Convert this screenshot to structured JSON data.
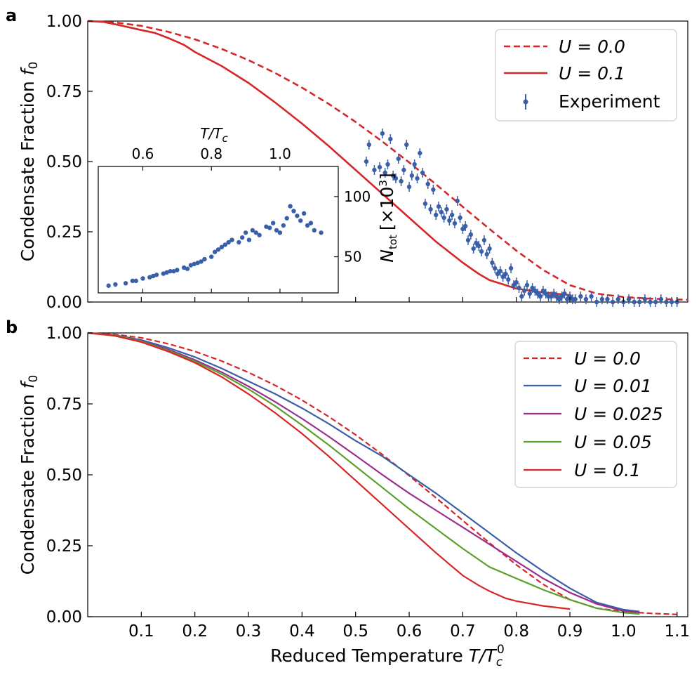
{
  "chart_data": [
    {
      "panel": "a",
      "type": "line",
      "ylabel": "Condensate Fraction",
      "ylabel_symbol": "f",
      "ylabel_sub": "0",
      "xlim": [
        0.0,
        1.12
      ],
      "ylim": [
        0.0,
        1.0
      ],
      "yticks": [
        "0.00",
        "0.25",
        "0.50",
        "0.75",
        "1.00"
      ],
      "legend_position": "top-right",
      "legend": [
        {
          "label": "U = 0.0",
          "style": "dashed",
          "color": "#d62728"
        },
        {
          "label": "U = 0.1",
          "style": "solid",
          "color": "#d62728"
        },
        {
          "label": "Experiment",
          "style": "errorbar-marker",
          "color": "#3a5ea8"
        }
      ],
      "series": [
        {
          "name": "U = 0.0",
          "style": "dashed",
          "color": "#d62728",
          "x": [
            0.0,
            0.05,
            0.1,
            0.15,
            0.2,
            0.25,
            0.3,
            0.35,
            0.4,
            0.45,
            0.5,
            0.55,
            0.6,
            0.65,
            0.7,
            0.75,
            0.8,
            0.85,
            0.9,
            0.95,
            1.0,
            1.05,
            1.1,
            1.12
          ],
          "y": [
            1.0,
            0.995,
            0.983,
            0.962,
            0.935,
            0.901,
            0.861,
            0.815,
            0.763,
            0.705,
            0.641,
            0.571,
            0.497,
            0.419,
            0.339,
            0.26,
            0.183,
            0.114,
            0.06,
            0.03,
            0.018,
            0.012,
            0.009,
            0.008
          ]
        },
        {
          "name": "U = 0.1",
          "style": "solid",
          "color": "#d62728",
          "x": [
            0.0,
            0.03,
            0.06,
            0.1,
            0.125,
            0.15,
            0.18,
            0.2,
            0.25,
            0.3,
            0.35,
            0.4,
            0.45,
            0.5,
            0.55,
            0.6,
            0.65,
            0.7,
            0.73,
            0.75,
            0.78,
            0.8,
            0.85,
            0.9
          ],
          "y": [
            1.0,
            0.997,
            0.985,
            0.968,
            0.958,
            0.94,
            0.915,
            0.89,
            0.84,
            0.78,
            0.71,
            0.635,
            0.555,
            0.47,
            0.385,
            0.3,
            0.215,
            0.14,
            0.1,
            0.078,
            0.06,
            0.048,
            0.034,
            0.025
          ]
        },
        {
          "name": "Experiment",
          "type": "scatter",
          "color": "#3a5ea8",
          "x": [
            0.52,
            0.525,
            0.535,
            0.545,
            0.55,
            0.555,
            0.56,
            0.565,
            0.57,
            0.575,
            0.58,
            0.585,
            0.59,
            0.595,
            0.6,
            0.605,
            0.61,
            0.615,
            0.62,
            0.625,
            0.63,
            0.635,
            0.64,
            0.645,
            0.65,
            0.655,
            0.66,
            0.665,
            0.67,
            0.675,
            0.68,
            0.685,
            0.69,
            0.695,
            0.7,
            0.705,
            0.71,
            0.715,
            0.72,
            0.725,
            0.73,
            0.735,
            0.74,
            0.745,
            0.75,
            0.755,
            0.76,
            0.765,
            0.77,
            0.775,
            0.78,
            0.785,
            0.79,
            0.795,
            0.8,
            0.805,
            0.81,
            0.815,
            0.82,
            0.825,
            0.83,
            0.835,
            0.84,
            0.845,
            0.85,
            0.855,
            0.86,
            0.865,
            0.87,
            0.875,
            0.88,
            0.885,
            0.89,
            0.895,
            0.9,
            0.905,
            0.91,
            0.92,
            0.93,
            0.94,
            0.95,
            0.96,
            0.97,
            0.98,
            0.99,
            1.0,
            1.01,
            1.02,
            1.03,
            1.04,
            1.05,
            1.06,
            1.07,
            1.08,
            1.09,
            1.1
          ],
          "y": [
            0.5,
            0.56,
            0.47,
            0.48,
            0.6,
            0.46,
            0.49,
            0.58,
            0.45,
            0.44,
            0.51,
            0.43,
            0.47,
            0.56,
            0.41,
            0.45,
            0.49,
            0.44,
            0.53,
            0.46,
            0.35,
            0.42,
            0.33,
            0.4,
            0.31,
            0.34,
            0.32,
            0.3,
            0.33,
            0.29,
            0.31,
            0.28,
            0.36,
            0.3,
            0.26,
            0.27,
            0.22,
            0.24,
            0.19,
            0.21,
            0.2,
            0.18,
            0.22,
            0.17,
            0.19,
            0.14,
            0.12,
            0.1,
            0.11,
            0.09,
            0.1,
            0.08,
            0.12,
            0.06,
            0.07,
            0.05,
            0.02,
            0.04,
            0.06,
            0.03,
            0.05,
            0.04,
            0.03,
            0.02,
            0.04,
            0.03,
            0.02,
            0.02,
            0.03,
            0.02,
            0.01,
            0.02,
            0.03,
            0.01,
            0.02,
            0.01,
            0.01,
            0.02,
            0.01,
            0.02,
            0.0,
            0.01,
            0.01,
            0.0,
            0.01,
            0.0,
            0.01,
            0.0,
            0.0,
            0.01,
            0.0,
            0.0,
            0.01,
            0.0,
            0.0,
            0.0
          ]
        }
      ],
      "inset": {
        "type": "scatter",
        "xlabel": "T/T",
        "xlabel_sub": "c",
        "ylabel_symbol": "N",
        "ylabel_sub": "tot",
        "ylabel_unit": "[×10",
        "ylabel_exp": "3",
        "ylabel_close": "]",
        "xlim": [
          0.47,
          1.17
        ],
        "ylim": [
          20,
          125
        ],
        "xticks": [
          0.6,
          0.8,
          1.0
        ],
        "xtick_labels": [
          "0.6",
          "0.8",
          "1.0"
        ],
        "yticks": [
          50,
          100
        ],
        "ytick_labels": [
          "50",
          "100"
        ],
        "color": "#3a5ea8",
        "x": [
          0.5,
          0.52,
          0.55,
          0.57,
          0.6,
          0.62,
          0.64,
          0.66,
          0.68,
          0.7,
          0.72,
          0.74,
          0.76,
          0.78,
          0.8,
          0.82,
          0.84,
          0.86,
          0.88,
          0.9,
          0.92,
          0.94,
          0.96,
          0.98,
          1.0,
          1.02,
          1.04,
          1.06,
          1.08,
          1.1,
          1.12,
          0.58,
          0.63,
          0.69,
          0.73,
          0.77,
          0.81,
          0.85,
          0.89,
          0.93,
          0.97,
          1.01,
          1.05,
          1.09,
          0.67,
          0.75,
          0.83,
          0.91,
          0.99,
          1.03,
          1.07
        ],
        "y": [
          26,
          27,
          28,
          30,
          32,
          33,
          35,
          36,
          38,
          39,
          41,
          43,
          45,
          48,
          50,
          56,
          60,
          64,
          62,
          70,
          72,
          68,
          75,
          78,
          70,
          82,
          88,
          80,
          76,
          72,
          70,
          30,
          34,
          38,
          40,
          46,
          54,
          62,
          66,
          70,
          74,
          76,
          84,
          78,
          37,
          44,
          58,
          64,
          72,
          92,
          86
        ]
      }
    },
    {
      "panel": "b",
      "type": "line",
      "xlabel": "Reduced Temperature",
      "xlabel_symbol": "T/T",
      "xlabel_sub": "c",
      "xlabel_sup": "0",
      "ylabel": "Condensate Fraction",
      "ylabel_symbol": "f",
      "ylabel_sub": "0",
      "xlim": [
        0.0,
        1.12
      ],
      "ylim": [
        0.0,
        1.0
      ],
      "xticks": [
        "0.1",
        "0.2",
        "0.3",
        "0.4",
        "0.5",
        "0.6",
        "0.7",
        "0.8",
        "0.9",
        "1.0",
        "1.1"
      ],
      "yticks": [
        "0.00",
        "0.25",
        "0.50",
        "0.75",
        "1.00"
      ],
      "legend_position": "top-right",
      "legend": [
        {
          "label": "U = 0.0",
          "style": "dashed",
          "color": "#d62728"
        },
        {
          "label": "U = 0.01",
          "style": "solid",
          "color": "#3a5ea8"
        },
        {
          "label": "U = 0.025",
          "style": "solid",
          "color": "#9b2d8f"
        },
        {
          "label": "U = 0.05",
          "style": "solid",
          "color": "#5aa02c"
        },
        {
          "label": "U = 0.1",
          "style": "solid",
          "color": "#d62728"
        }
      ],
      "series": [
        {
          "name": "U = 0.0",
          "style": "dashed",
          "color": "#d62728",
          "x": [
            0.0,
            0.05,
            0.1,
            0.15,
            0.2,
            0.25,
            0.3,
            0.35,
            0.4,
            0.45,
            0.5,
            0.55,
            0.6,
            0.65,
            0.7,
            0.75,
            0.8,
            0.85,
            0.9,
            0.95,
            1.0,
            1.05,
            1.1
          ],
          "y": [
            1.0,
            0.995,
            0.983,
            0.962,
            0.935,
            0.901,
            0.861,
            0.815,
            0.763,
            0.705,
            0.641,
            0.571,
            0.497,
            0.419,
            0.339,
            0.26,
            0.183,
            0.114,
            0.06,
            0.03,
            0.018,
            0.012,
            0.008
          ]
        },
        {
          "name": "U = 0.01",
          "style": "solid",
          "color": "#3a5ea8",
          "x": [
            0.0,
            0.05,
            0.1,
            0.15,
            0.2,
            0.25,
            0.3,
            0.35,
            0.4,
            0.45,
            0.5,
            0.55,
            0.6,
            0.65,
            0.7,
            0.75,
            0.8,
            0.85,
            0.9,
            0.95,
            1.0,
            1.03
          ],
          "y": [
            1.0,
            0.993,
            0.975,
            0.948,
            0.915,
            0.875,
            0.83,
            0.785,
            0.735,
            0.68,
            0.62,
            0.565,
            0.5,
            0.435,
            0.365,
            0.295,
            0.225,
            0.16,
            0.1,
            0.05,
            0.025,
            0.018
          ]
        },
        {
          "name": "U = 0.025",
          "style": "solid",
          "color": "#9b2d8f",
          "x": [
            0.0,
            0.05,
            0.1,
            0.15,
            0.2,
            0.25,
            0.3,
            0.35,
            0.4,
            0.45,
            0.5,
            0.55,
            0.6,
            0.65,
            0.7,
            0.75,
            0.8,
            0.85,
            0.9,
            0.95,
            1.0,
            1.03
          ],
          "y": [
            1.0,
            0.992,
            0.972,
            0.942,
            0.905,
            0.862,
            0.812,
            0.757,
            0.698,
            0.635,
            0.568,
            0.5,
            0.435,
            0.375,
            0.315,
            0.255,
            0.195,
            0.135,
            0.085,
            0.045,
            0.02,
            0.015
          ]
        },
        {
          "name": "U = 0.05",
          "style": "solid",
          "color": "#5aa02c",
          "x": [
            0.0,
            0.05,
            0.1,
            0.15,
            0.2,
            0.25,
            0.3,
            0.35,
            0.4,
            0.45,
            0.5,
            0.55,
            0.6,
            0.65,
            0.7,
            0.75,
            0.8,
            0.85,
            0.9,
            0.95,
            1.0,
            1.03
          ],
          "y": [
            1.0,
            0.992,
            0.97,
            0.938,
            0.9,
            0.855,
            0.802,
            0.742,
            0.675,
            0.605,
            0.53,
            0.455,
            0.38,
            0.31,
            0.24,
            0.175,
            0.135,
            0.095,
            0.06,
            0.03,
            0.014,
            0.01
          ]
        },
        {
          "name": "U = 0.1",
          "style": "solid",
          "color": "#d62728",
          "x": [
            0.0,
            0.05,
            0.1,
            0.15,
            0.2,
            0.25,
            0.3,
            0.35,
            0.4,
            0.45,
            0.5,
            0.55,
            0.6,
            0.65,
            0.7,
            0.73,
            0.75,
            0.78,
            0.8,
            0.85,
            0.9
          ],
          "y": [
            1.0,
            0.99,
            0.968,
            0.935,
            0.895,
            0.845,
            0.785,
            0.718,
            0.645,
            0.565,
            0.48,
            0.395,
            0.31,
            0.225,
            0.145,
            0.11,
            0.09,
            0.065,
            0.055,
            0.038,
            0.027
          ]
        }
      ]
    }
  ]
}
